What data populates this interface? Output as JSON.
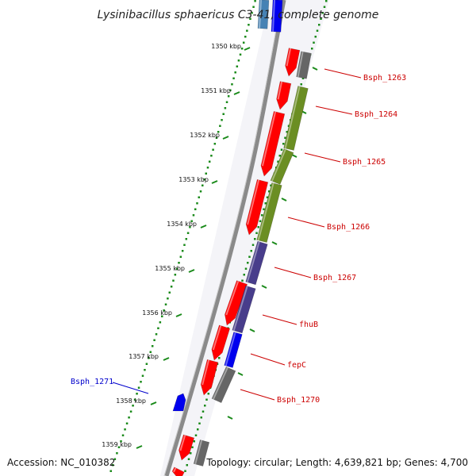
{
  "title": "Lysinibacillus sphaericus C3-41, complete genome",
  "accession": "Accession: NC_010382",
  "topology": "Topology: circular; Length: 4,639,821 bp; Genes: 4,700",
  "colors": {
    "backbone": "#8a8a8a",
    "scale_dots": "#1a8a1a",
    "cds": "#ff0000",
    "rna": "#0000ee",
    "gray": "#666666",
    "olive": "#6b8e23",
    "slate": "#483d8b",
    "label_forward": "#cc0000",
    "label_reverse": "#0000cc"
  },
  "scale_ticks": [
    "1350 kbp",
    "1351 kbp",
    "1352 kbp",
    "1353 kbp",
    "1354 kbp",
    "1355 kbp",
    "1356 kbp",
    "1357 kbp",
    "1358 kbp",
    "1359 kbp"
  ],
  "labels": [
    {
      "text": "Bsph_1263",
      "color": "label_forward"
    },
    {
      "text": "Bsph_1264",
      "color": "label_forward"
    },
    {
      "text": "Bsph_1265",
      "color": "label_forward"
    },
    {
      "text": "Bsph_1266",
      "color": "label_forward"
    },
    {
      "text": "Bsph_1267",
      "color": "label_forward"
    },
    {
      "text": "fhuB",
      "color": "label_forward"
    },
    {
      "text": "fepC",
      "color": "label_forward"
    },
    {
      "text": "Bsph_1270",
      "color": "label_forward"
    },
    {
      "text": "Bsph_1271",
      "color": "label_reverse"
    }
  ]
}
